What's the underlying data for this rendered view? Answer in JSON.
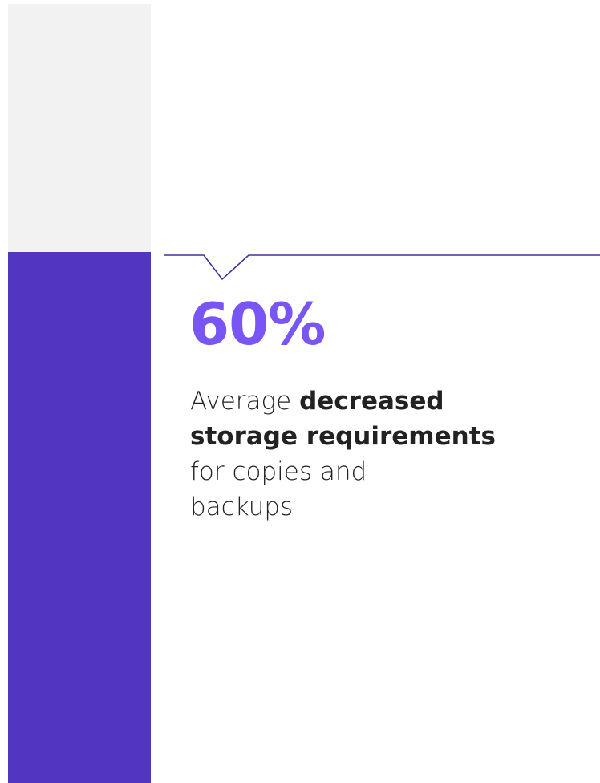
{
  "stat": {
    "value": "60%",
    "color": "#7a55f5"
  },
  "description": {
    "line1_normal": "Average ",
    "line1_bold": "decreased",
    "line2_bold": "storage requirements",
    "line3": "for copies and",
    "line4": "backups"
  },
  "colors": {
    "bar_accent": "#5236c2",
    "bar_light": "#f2f2f2",
    "callout_line": "#4a2a9a",
    "text": "#222222"
  }
}
